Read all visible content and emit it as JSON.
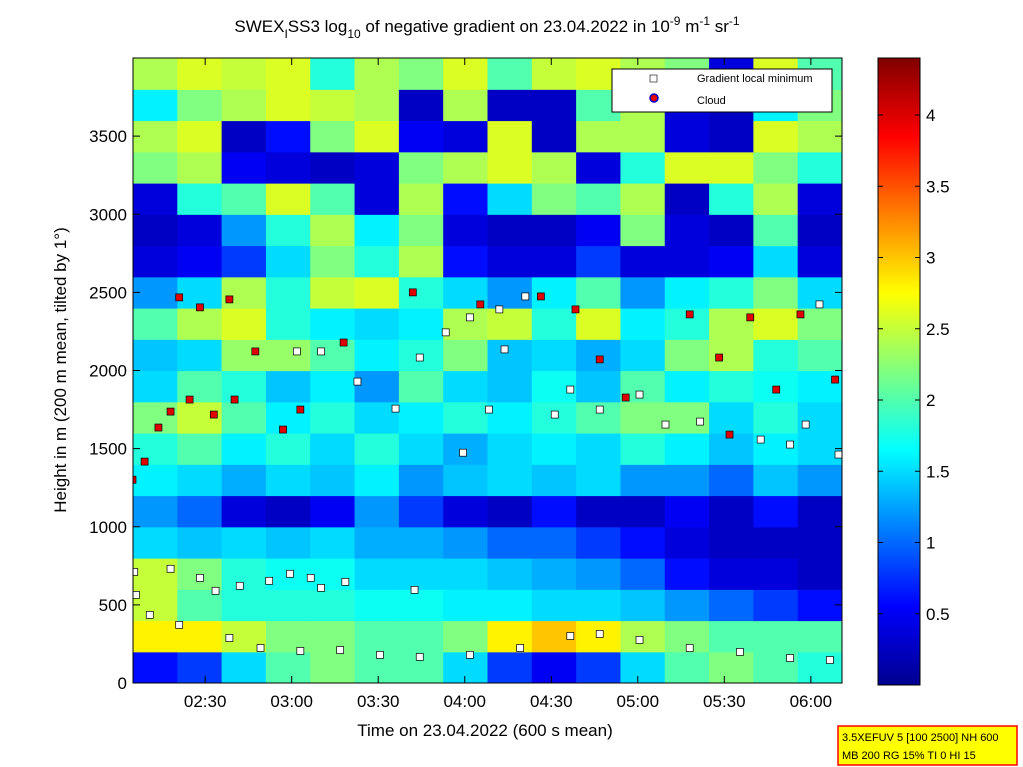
{
  "chart_data": {
    "type": "heatmap",
    "title": [
      "SWEX",
      "I",
      "SS3 log",
      "10",
      " of negative gradient on 23.04.2022 in 10",
      "-9",
      " m",
      "-1",
      " sr",
      "-1"
    ],
    "xlabel": "Time on 23.04.2022 (600 s mean)",
    "ylabel": "Height in m (200 m mean, tilted by 1°)",
    "xlim": [
      2.083,
      6.18
    ],
    "ylim": [
      0,
      4000
    ],
    "xticks": [
      {
        "value": 2.5,
        "label": "02:30"
      },
      {
        "value": 3,
        "label": "03:00"
      },
      {
        "value": 3.5,
        "label": "03:30"
      },
      {
        "value": 4,
        "label": "04:00"
      },
      {
        "value": 4.5,
        "label": "04:30"
      },
      {
        "value": 5,
        "label": "05:00"
      },
      {
        "value": 5.5,
        "label": "05:30"
      },
      {
        "value": 6,
        "label": "06:00"
      }
    ],
    "yticks": [
      0,
      500,
      1000,
      1500,
      2000,
      2500,
      3000,
      3500
    ],
    "colormap": "jet",
    "clim": [
      0,
      4.4
    ],
    "cticks": [
      0.5,
      1,
      1.5,
      2,
      2.5,
      3,
      3.5,
      4
    ],
    "z": [
      [
        0.6,
        0.8,
        1.5,
        2.0,
        2.2,
        2.0,
        2.0,
        1.5,
        0.8,
        0.5,
        0.8,
        1.5,
        2.0,
        2.2,
        2.0,
        1.8
      ],
      [
        2.8,
        2.8,
        2.5,
        2.2,
        2.2,
        2.0,
        2.0,
        2.2,
        2.8,
        3.0,
        2.8,
        2.4,
        2.2,
        2.0,
        2.0,
        2.0
      ],
      [
        2.5,
        2.0,
        1.8,
        1.8,
        1.8,
        1.7,
        1.7,
        1.6,
        1.6,
        1.5,
        1.5,
        1.4,
        1.2,
        1.0,
        0.8,
        0.6
      ],
      [
        2.5,
        2.2,
        1.8,
        1.7,
        1.7,
        1.5,
        1.5,
        1.5,
        1.4,
        1.3,
        1.2,
        1.0,
        0.6,
        0.4,
        0.4,
        0.3
      ],
      [
        1.5,
        1.4,
        1.5,
        1.4,
        1.5,
        1.3,
        1.3,
        1.2,
        1.0,
        1.0,
        0.8,
        0.6,
        0.4,
        0.3,
        0.3,
        0.3
      ],
      [
        1.2,
        1.0,
        0.4,
        0.3,
        0.5,
        1.2,
        0.8,
        0.4,
        0.3,
        0.6,
        0.3,
        0.3,
        0.5,
        0.3,
        0.6,
        0.3
      ],
      [
        1.6,
        1.5,
        1.3,
        1.5,
        1.4,
        1.6,
        1.2,
        1.4,
        1.5,
        1.4,
        1.5,
        1.2,
        1.2,
        1.0,
        1.4,
        1.2
      ],
      [
        1.8,
        2.0,
        1.6,
        1.8,
        1.5,
        1.8,
        1.5,
        1.3,
        1.5,
        1.6,
        1.5,
        1.8,
        1.6,
        1.4,
        1.6,
        1.5
      ],
      [
        2.2,
        2.5,
        2.0,
        1.6,
        1.8,
        1.5,
        1.6,
        1.8,
        1.6,
        1.8,
        2.0,
        2.2,
        2.2,
        1.5,
        1.8,
        1.5
      ],
      [
        1.5,
        2.0,
        1.8,
        1.4,
        1.6,
        1.2,
        2.0,
        1.5,
        1.4,
        1.7,
        1.4,
        2.0,
        1.6,
        1.8,
        1.7,
        1.6
      ],
      [
        1.4,
        1.5,
        2.3,
        2.3,
        2.0,
        1.6,
        1.8,
        2.2,
        1.4,
        1.5,
        1.3,
        1.5,
        2.2,
        2.4,
        1.8,
        2.0
      ],
      [
        2.0,
        2.4,
        2.6,
        1.8,
        1.6,
        1.5,
        1.6,
        2.4,
        2.5,
        1.8,
        2.6,
        1.6,
        1.8,
        2.4,
        2.6,
        2.2
      ],
      [
        1.2,
        1.5,
        2.4,
        1.8,
        2.5,
        2.6,
        1.8,
        1.5,
        1.2,
        1.6,
        2.0,
        1.2,
        1.6,
        1.8,
        2.2,
        1.5
      ],
      [
        0.4,
        0.5,
        0.8,
        1.5,
        2.2,
        1.8,
        2.4,
        0.6,
        0.4,
        0.4,
        0.8,
        0.4,
        0.4,
        0.5,
        1.5,
        0.4
      ],
      [
        0.3,
        0.4,
        1.2,
        1.8,
        2.4,
        1.6,
        2.2,
        0.4,
        0.3,
        0.3,
        0.5,
        2.2,
        0.4,
        0.3,
        2.0,
        0.3
      ],
      [
        0.4,
        1.8,
        2.0,
        2.6,
        2.0,
        0.4,
        2.4,
        0.6,
        1.5,
        2.2,
        2.0,
        2.4,
        0.3,
        1.8,
        2.4,
        0.4
      ],
      [
        2.2,
        2.4,
        0.5,
        0.4,
        0.3,
        0.4,
        2.2,
        2.4,
        2.6,
        2.4,
        0.4,
        1.8,
        2.6,
        2.6,
        2.2,
        1.8
      ],
      [
        2.4,
        2.6,
        0.3,
        0.6,
        2.2,
        2.6,
        0.5,
        0.4,
        2.6,
        0.3,
        2.4,
        2.4,
        0.4,
        0.3,
        2.6,
        2.4
      ],
      [
        1.6,
        2.2,
        2.4,
        2.6,
        2.5,
        2.4,
        0.3,
        2.4,
        0.3,
        0.3,
        2.0,
        2.4,
        0.4,
        0.3,
        1.6,
        2.2
      ],
      [
        2.4,
        2.6,
        2.5,
        2.6,
        1.8,
        2.4,
        2.2,
        2.6,
        2.0,
        2.5,
        2.6,
        2.4,
        2.2,
        0.4,
        2.6,
        2.0
      ]
    ],
    "series": [
      {
        "name": "Gradient local minimum",
        "color": "#ffffff",
        "x": [
          2.1,
          2.18,
          2.35,
          2.64,
          2.82,
          3.05,
          3.28,
          3.51,
          3.74,
          4.03,
          4.32,
          4.61,
          4.78,
          5.01,
          5.3,
          5.59,
          5.88,
          6.11,
          2.09,
          2.3,
          2.47,
          2.56,
          2.7,
          2.87,
          2.99,
          3.11,
          3.17,
          3.31,
          3.71,
          3.03,
          3.17,
          3.38,
          3.6,
          3.74,
          3.89,
          4.03,
          4.2,
          4.35,
          4.52,
          4.61,
          4.78,
          5.01,
          5.16,
          5.36,
          5.71,
          5.88,
          5.97,
          6.05,
          6.16,
          3.99,
          4.14,
          4.23
        ],
        "values": [
          564,
          436,
          372,
          288,
          224,
          205,
          211,
          180,
          167,
          180,
          224,
          301,
          314,
          276,
          224,
          199,
          160,
          147,
          711,
          731,
          673,
          590,
          622,
          654,
          699,
          673,
          609,
          647,
          596,
          2122,
          2122,
          1929,
          1756,
          2083,
          2244,
          2340,
          2391,
          2474,
          1718,
          1878,
          1750,
          1846,
          1654,
          1673,
          1558,
          1526,
          1654,
          2423,
          1462,
          1474,
          1750,
          2135
        ]
      },
      {
        "name": "Cloud",
        "color": "#e00000",
        "x": [
          2.08,
          2.15,
          2.23,
          2.3,
          2.41,
          2.35,
          2.47,
          2.64,
          2.55,
          2.67,
          2.79,
          2.95,
          3.05,
          3.3,
          3.7,
          4.09,
          4.44,
          4.64,
          4.78,
          4.93,
          5.3,
          5.47,
          5.65,
          5.8,
          5.94,
          6.14,
          5.53
        ],
        "values": [
          1301,
          1417,
          1635,
          1737,
          1814,
          2468,
          2404,
          2455,
          1718,
          1814,
          2122,
          1622,
          1750,
          2179,
          2500,
          2423,
          2474,
          2391,
          2071,
          1827,
          2359,
          2083,
          2340,
          1878,
          2359,
          1942,
          1590
        ]
      }
    ],
    "info_box": [
      "3.5XEFUV 5 [100 2500] NH 600",
      "MB 200 RG 15% TI 0 HI 15"
    ]
  }
}
